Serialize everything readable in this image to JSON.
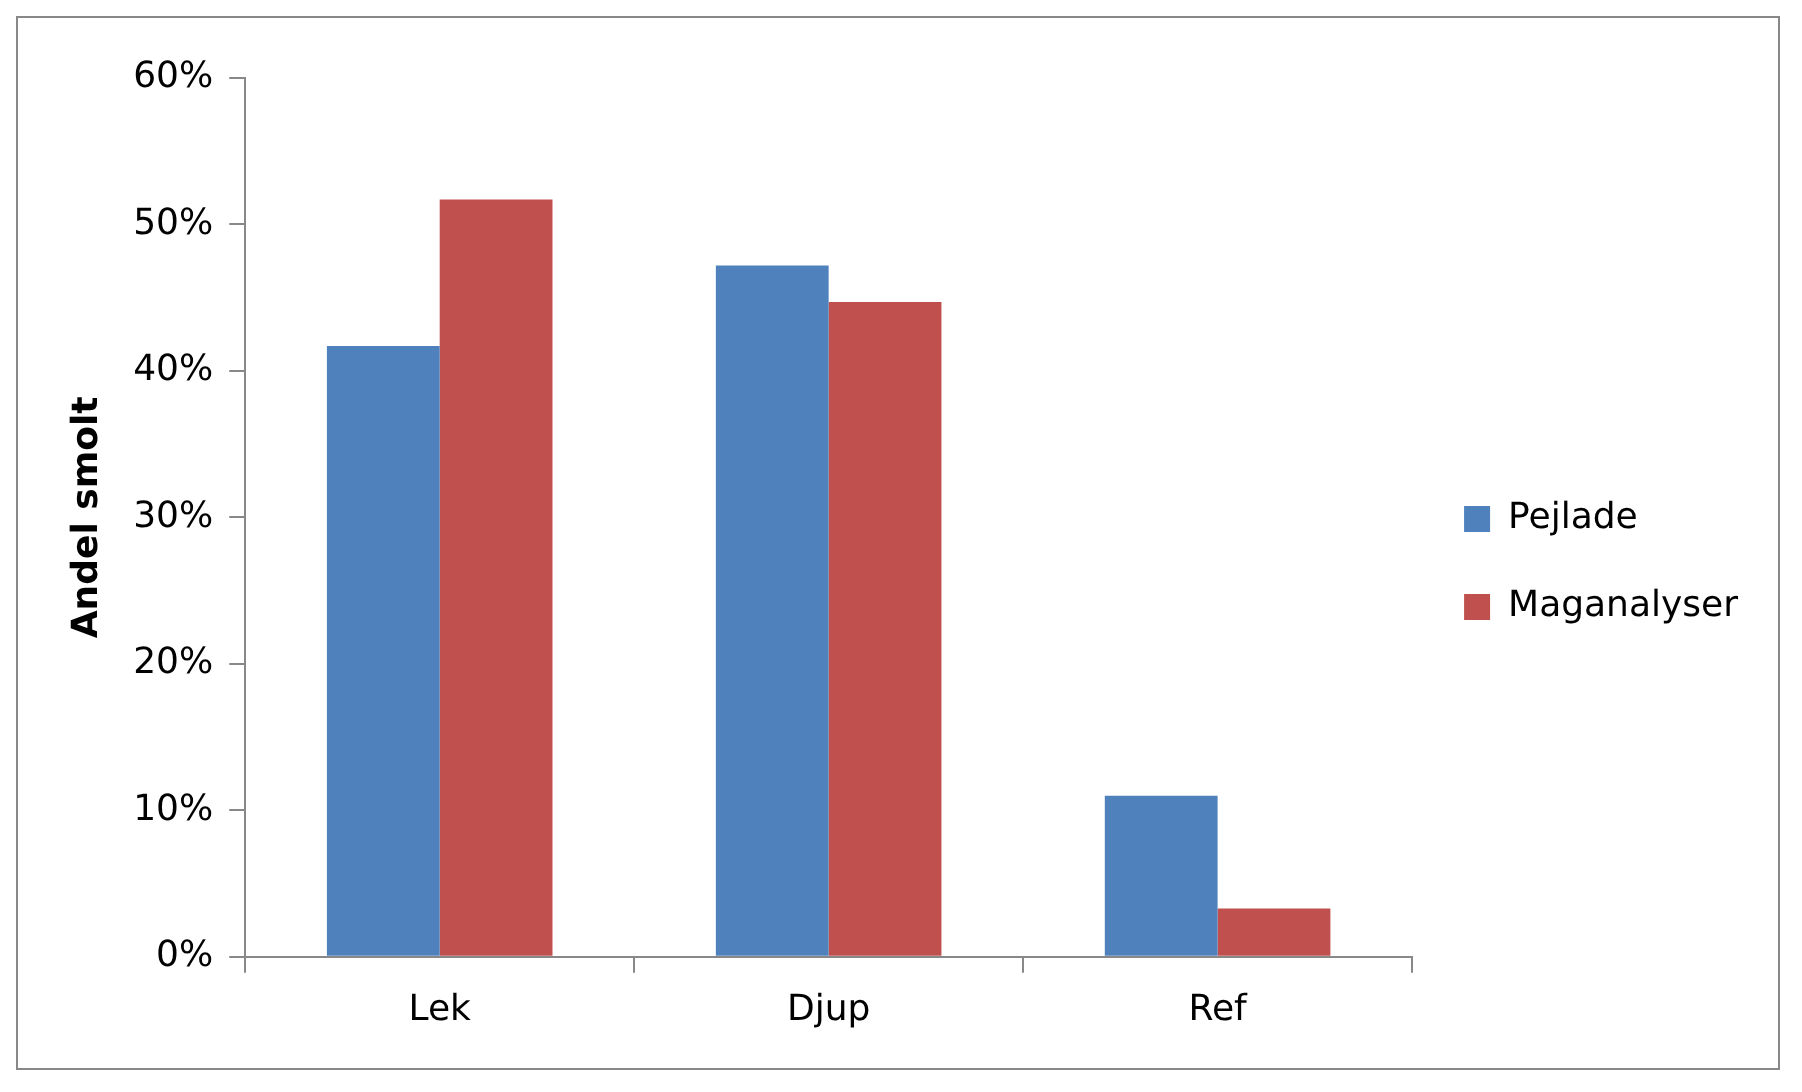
{
  "chart_data": {
    "type": "bar",
    "ylabel": "Andel smolt",
    "categories": [
      "Lek",
      "Djup",
      "Ref"
    ],
    "series": [
      {
        "name": "Pejlade",
        "color": "#4f81bd",
        "values": [
          41.7,
          47.2,
          11.0
        ]
      },
      {
        "name": "Maganalyser",
        "color": "#c0504d",
        "values": [
          51.7,
          44.7,
          3.3
        ]
      }
    ],
    "ylim": [
      0,
      60
    ],
    "yticks": [
      {
        "value": 0,
        "label": "0%"
      },
      {
        "value": 10,
        "label": "10%"
      },
      {
        "value": 20,
        "label": "20%"
      },
      {
        "value": 30,
        "label": "30%"
      },
      {
        "value": 40,
        "label": "40%"
      },
      {
        "value": 50,
        "label": "50%"
      },
      {
        "value": 60,
        "label": "60%"
      }
    ],
    "grid": false,
    "legend": "right"
  }
}
